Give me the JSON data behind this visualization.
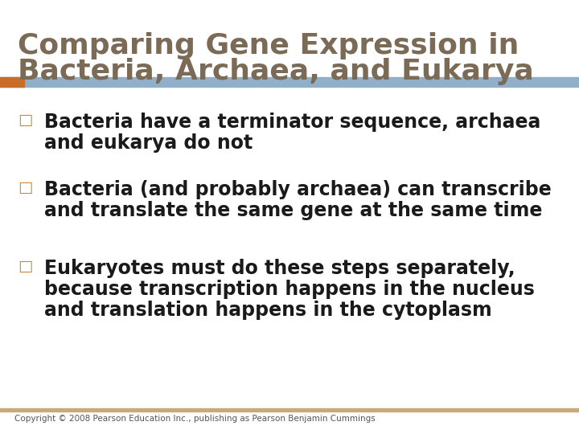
{
  "title_line1": "Comparing Gene Expression in",
  "title_line2": "Bacteria, Archaea, and Eukarya",
  "title_color": "#7B6B56",
  "title_fontsize": 26,
  "bg_color": "#FFFFFF",
  "header_bar_color": "#92AFCA",
  "header_bar_left_color": "#C86D2A",
  "bullet_color": "#C8882A",
  "bullet_symbol": "□",
  "bullet_fontsize": 14,
  "text_color": "#1A1A1A",
  "text_fontsize": 17,
  "footer_text": "Copyright © 2008 Pearson Education Inc., publishing as Pearson Benjamin Cummings",
  "footer_color": "#555555",
  "footer_fontsize": 7.5,
  "footer_bar_color": "#C8A97A",
  "bullet_points": [
    [
      "Bacteria have a terminator sequence, archaea",
      "and eukarya do not"
    ],
    [
      "Bacteria (and probably archaea) can transcribe",
      "and translate the same gene at the same time"
    ],
    [
      "Eukaryotes must do these steps separately,",
      "because transcription happens in the nucleus",
      "and translation happens in the cytoplasm"
    ]
  ]
}
